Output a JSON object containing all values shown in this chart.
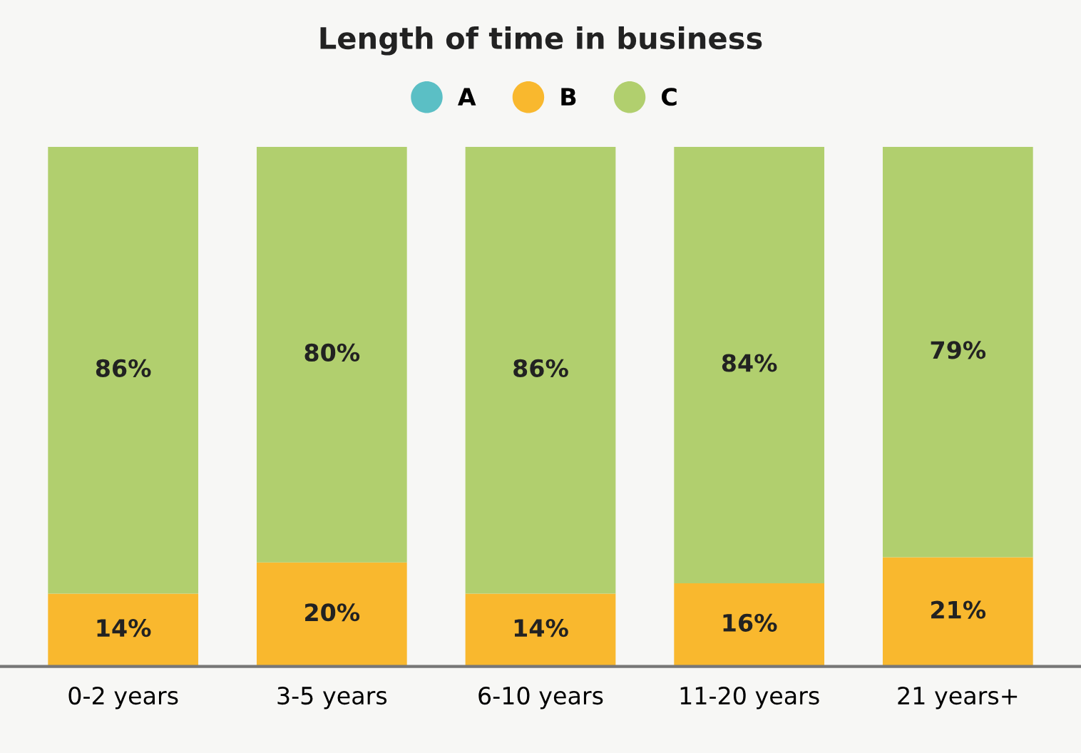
{
  "chart_data": {
    "type": "bar",
    "title": "Length of time in business",
    "categories": [
      "0-2 years",
      "3-5 years",
      "6-10 years",
      "11-20 years",
      "21 years+"
    ],
    "stacked": true,
    "tick_labels": "x",
    "grid": false,
    "legend": "top",
    "series": [
      {
        "name": "A",
        "color": "#5bbfc5",
        "values": [
          null,
          null,
          null,
          null,
          null
        ]
      },
      {
        "name": "B",
        "color": "#f9b82e",
        "values": [
          14,
          20,
          14,
          16,
          21
        ],
        "value_labels": [
          "14%",
          "20%",
          "14%",
          "16%",
          "21%"
        ]
      },
      {
        "name": "C",
        "color": "#b1cf6e",
        "values": [
          86,
          80,
          86,
          84,
          79
        ],
        "value_labels": [
          "86%",
          "80%",
          "86%",
          "84%",
          "79%"
        ]
      }
    ]
  }
}
